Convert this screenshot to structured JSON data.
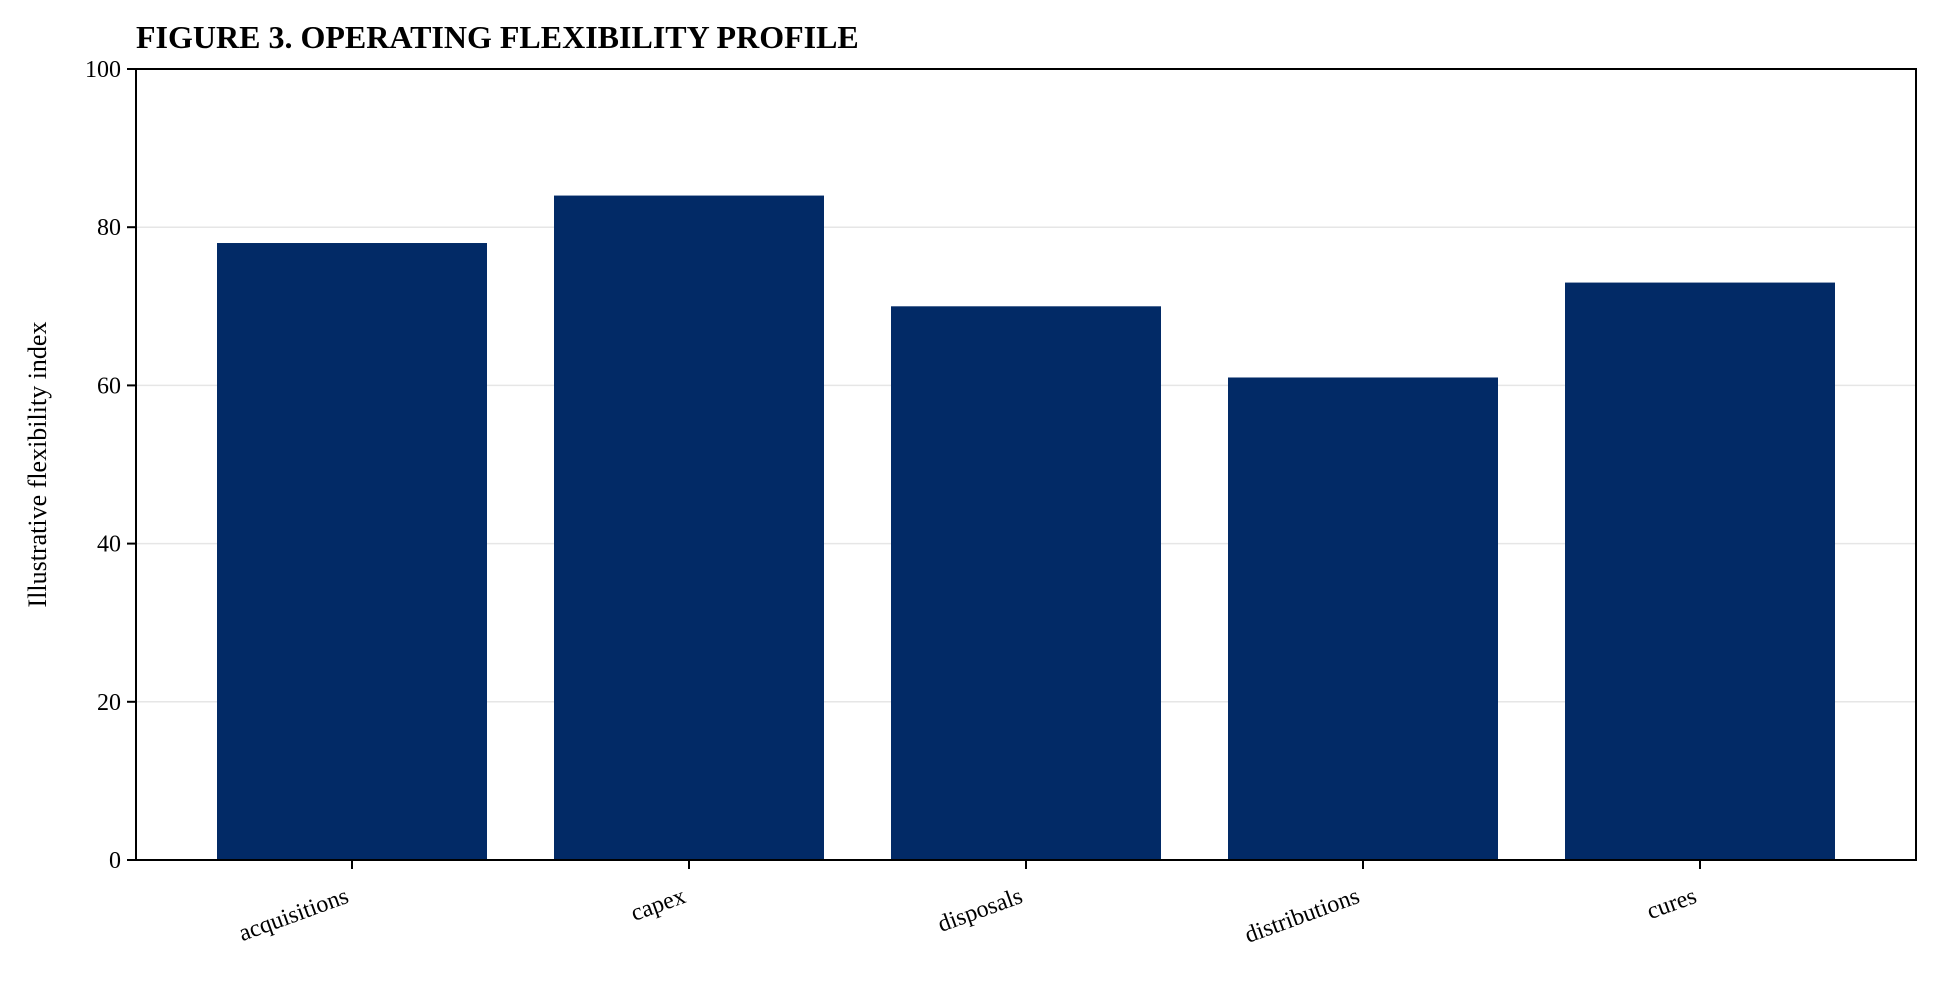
{
  "chart_data": {
    "type": "bar",
    "title": "FIGURE 3. OPERATING FLEXIBILITY PROFILE",
    "xlabel": "",
    "ylabel": "Illustrative flexibility index",
    "categories": [
      "acquisitions",
      "capex",
      "disposals",
      "distributions",
      "cures"
    ],
    "values": [
      78,
      84,
      70,
      61,
      73
    ],
    "ylim": [
      0,
      100
    ],
    "yticks": [
      0,
      20,
      40,
      60,
      80,
      100
    ],
    "grid": "horizontal",
    "bar_color": "#022a66",
    "grid_color": "#e6e6e6"
  }
}
